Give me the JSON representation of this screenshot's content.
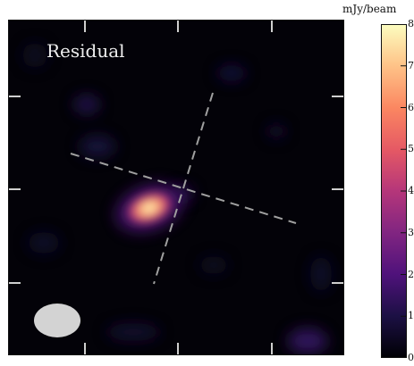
{
  "panel": {
    "label": "Residual"
  },
  "colorbar": {
    "unit": "mJy/beam",
    "min": 0,
    "max": 8,
    "ticks": [
      "0",
      "1",
      "2",
      "3",
      "4",
      "5",
      "6",
      "7",
      "8"
    ],
    "colormap": [
      "#000004",
      "#1c1044",
      "#4f127b",
      "#812581",
      "#b5367a",
      "#e55964",
      "#fb8761",
      "#fec287",
      "#fcfdbf"
    ]
  },
  "colors": {
    "background": "#030208",
    "dashed_lines": "#a0a0a0",
    "beam": "#d3d3d3",
    "label_text": "#eeeeee"
  }
}
